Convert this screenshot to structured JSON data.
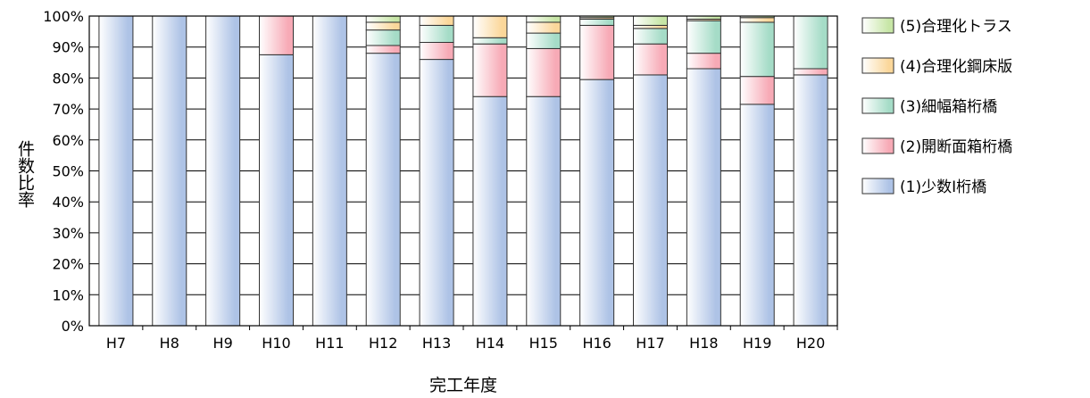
{
  "chart_data": {
    "type": "bar",
    "stacked": true,
    "normalized": true,
    "xlabel": "完工年度",
    "ylabel": "件数比率",
    "ylim": [
      0,
      100
    ],
    "yticks": [
      "0%",
      "10%",
      "20%",
      "30%",
      "40%",
      "50%",
      "60%",
      "70%",
      "80%",
      "90%",
      "100%"
    ],
    "grid": "horizontal",
    "legend_position": "right",
    "categories": [
      "H7",
      "H8",
      "H9",
      "H10",
      "H11",
      "H12",
      "H13",
      "H14",
      "H15",
      "H16",
      "H17",
      "H18",
      "H19",
      "H20"
    ],
    "series": [
      {
        "name": "(1)少数I桁橋",
        "color": "#aec3e6",
        "values": [
          100,
          100,
          100,
          87.5,
          100,
          88,
          86,
          74,
          74,
          79.5,
          81,
          83,
          71.5,
          81
        ]
      },
      {
        "name": "(2)開断面箱桁橋",
        "color": "#f7aab6",
        "values": [
          0,
          0,
          0,
          12.5,
          0,
          2.5,
          5.5,
          17,
          15.5,
          17.5,
          10,
          5,
          9,
          2
        ]
      },
      {
        "name": "(3)細幅箱桁橋",
        "color": "#a5dcc7",
        "values": [
          0,
          0,
          0,
          0,
          0,
          5,
          5.5,
          2,
          5,
          2,
          5,
          10.5,
          17.5,
          17
        ]
      },
      {
        "name": "(4)合理化鋼床版",
        "color": "#fbd79a",
        "values": [
          0,
          0,
          0,
          0,
          0,
          2.5,
          3,
          7,
          3.5,
          0.5,
          1,
          0.5,
          1.5,
          0
        ]
      },
      {
        "name": "(5)合理化トラス",
        "color": "#c7e6a6",
        "values": [
          0,
          0,
          0,
          0,
          0,
          2,
          0,
          0,
          2,
          0.5,
          3,
          1,
          0.5,
          0
        ]
      }
    ]
  }
}
